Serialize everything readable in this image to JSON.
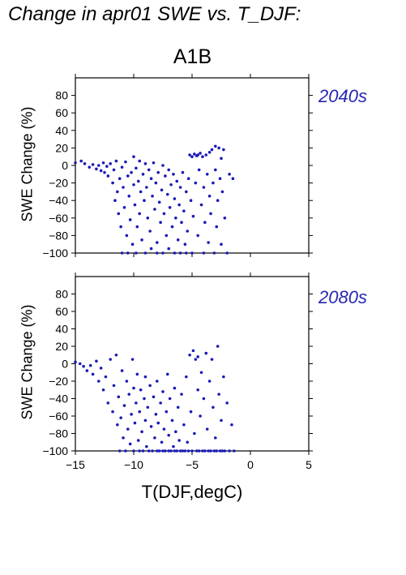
{
  "figure": {
    "title": "Change in apr01 SWE vs. T_DJF:",
    "scenario": "A1B"
  },
  "chart_data": [
    {
      "type": "scatter",
      "panel_label": "2040s",
      "ylabel": "SWE Change (%)",
      "xlabel": "T(DJF,degC)",
      "xlim": [
        -15,
        5
      ],
      "ylim": [
        -100,
        100
      ],
      "xticks": [
        -15,
        -10,
        -5,
        0,
        5
      ],
      "yticks": [
        -100,
        -80,
        -60,
        -40,
        -20,
        0,
        20,
        40,
        60,
        80
      ],
      "point_color": "#1a1ab8",
      "label_color": "#2626b3",
      "points": [
        [
          -15,
          3
        ],
        [
          -14.5,
          5
        ],
        [
          -14.2,
          2
        ],
        [
          -13.8,
          -2
        ],
        [
          -13.5,
          1
        ],
        [
          -13.2,
          -4
        ],
        [
          -13,
          0
        ],
        [
          -12.8,
          -6
        ],
        [
          -12.6,
          3
        ],
        [
          -12.5,
          -8
        ],
        [
          -12.3,
          -1
        ],
        [
          -12.2,
          -12
        ],
        [
          -12,
          2
        ],
        [
          -11.8,
          -20
        ],
        [
          -11.7,
          -5
        ],
        [
          -11.6,
          -40
        ],
        [
          -11.5,
          5
        ],
        [
          -11.4,
          -30
        ],
        [
          -11.3,
          -55
        ],
        [
          -11.2,
          -15
        ],
        [
          -11.1,
          -70
        ],
        [
          -11,
          -2
        ],
        [
          -11,
          -100
        ],
        [
          -10.9,
          -25
        ],
        [
          -10.8,
          -48
        ],
        [
          -10.7,
          4
        ],
        [
          -10.6,
          -80
        ],
        [
          -10.5,
          -12
        ],
        [
          -10.5,
          -100
        ],
        [
          -10.4,
          -35
        ],
        [
          -10.3,
          -62
        ],
        [
          -10.2,
          -8
        ],
        [
          -10.1,
          -90
        ],
        [
          -10,
          10
        ],
        [
          -10,
          -22
        ],
        [
          -9.9,
          -45
        ],
        [
          -9.8,
          -3
        ],
        [
          -9.8,
          -100
        ],
        [
          -9.7,
          -70
        ],
        [
          -9.6,
          -18
        ],
        [
          -9.5,
          5
        ],
        [
          -9.5,
          -55
        ],
        [
          -9.4,
          -30
        ],
        [
          -9.3,
          -85
        ],
        [
          -9.2,
          -10
        ],
        [
          -9.1,
          -40
        ],
        [
          -9,
          2
        ],
        [
          -9,
          -100
        ],
        [
          -8.9,
          -25
        ],
        [
          -8.8,
          -60
        ],
        [
          -8.7,
          -5
        ],
        [
          -8.6,
          -75
        ],
        [
          -8.5,
          -15
        ],
        [
          -8.5,
          -95
        ],
        [
          -8.4,
          -35
        ],
        [
          -8.3,
          3
        ],
        [
          -8.2,
          -50
        ],
        [
          -8.1,
          -20
        ],
        [
          -8,
          -88
        ],
        [
          -8,
          -100
        ],
        [
          -7.9,
          -8
        ],
        [
          -7.8,
          -42
        ],
        [
          -7.7,
          -65
        ],
        [
          -7.6,
          -28
        ],
        [
          -7.5,
          0
        ],
        [
          -7.5,
          -100
        ],
        [
          -7.4,
          -55
        ],
        [
          -7.3,
          -12
        ],
        [
          -7.2,
          -80
        ],
        [
          -7.1,
          -33
        ],
        [
          -7,
          -5
        ],
        [
          -7,
          -95
        ],
        [
          -6.9,
          -48
        ],
        [
          -6.8,
          -22
        ],
        [
          -6.7,
          -70
        ],
        [
          -6.6,
          -10
        ],
        [
          -6.5,
          -100
        ],
        [
          -6.5,
          -38
        ],
        [
          -6.4,
          -60
        ],
        [
          -6.3,
          -18
        ],
        [
          -6.2,
          -85
        ],
        [
          -6.1,
          -45
        ],
        [
          -6,
          -25
        ],
        [
          -6,
          -100
        ],
        [
          -5.9,
          -65
        ],
        [
          -5.8,
          -8
        ],
        [
          -5.7,
          -52
        ],
        [
          -5.6,
          -90
        ],
        [
          -5.5,
          -30
        ],
        [
          -5.5,
          -100
        ],
        [
          -5.4,
          -75
        ],
        [
          -5.3,
          -15
        ],
        [
          -5.2,
          12
        ],
        [
          -5.1,
          -40
        ],
        [
          -5,
          10
        ],
        [
          -5,
          -100
        ],
        [
          -4.9,
          -58
        ],
        [
          -4.8,
          13
        ],
        [
          -4.7,
          -20
        ],
        [
          -4.6,
          11
        ],
        [
          -4.5,
          -80
        ],
        [
          -4.5,
          12
        ],
        [
          -4.4,
          -5
        ],
        [
          -4.3,
          14
        ],
        [
          -4.2,
          -45
        ],
        [
          -4.1,
          10
        ],
        [
          -4,
          -100
        ],
        [
          -4,
          -25
        ],
        [
          -3.9,
          -65
        ],
        [
          -3.8,
          12
        ],
        [
          -3.7,
          -10
        ],
        [
          -3.6,
          -88
        ],
        [
          -3.5,
          15
        ],
        [
          -3.5,
          -35
        ],
        [
          -3.4,
          -55
        ],
        [
          -3.3,
          18
        ],
        [
          -3.2,
          -20
        ],
        [
          -3.1,
          -100
        ],
        [
          -3,
          22
        ],
        [
          -3,
          -5
        ],
        [
          -2.9,
          -70
        ],
        [
          -2.8,
          -40
        ],
        [
          -2.7,
          20
        ],
        [
          -2.6,
          -15
        ],
        [
          -2.5,
          -90
        ],
        [
          -2.5,
          8
        ],
        [
          -2.4,
          -30
        ],
        [
          -2.3,
          18
        ],
        [
          -2.2,
          -60
        ],
        [
          -2,
          -100
        ],
        [
          -1.8,
          -10
        ],
        [
          -1.5,
          -15
        ]
      ]
    },
    {
      "type": "scatter",
      "panel_label": "2080s",
      "ylabel": "SWE Change (%)",
      "xlabel": "T(DJF,degC)",
      "xlim": [
        -15,
        5
      ],
      "ylim": [
        -100,
        100
      ],
      "xticks": [
        -15,
        -10,
        -5,
        0,
        5
      ],
      "yticks": [
        -100,
        -80,
        -60,
        -40,
        -20,
        0,
        20,
        40,
        60,
        80
      ],
      "point_color": "#1a1ab8",
      "label_color": "#2626b3",
      "points": [
        [
          -15,
          2
        ],
        [
          -14.6,
          0
        ],
        [
          -14.3,
          -3
        ],
        [
          -14,
          -8
        ],
        [
          -13.7,
          -2
        ],
        [
          -13.5,
          -12
        ],
        [
          -13.2,
          3
        ],
        [
          -13,
          -20
        ],
        [
          -12.8,
          -5
        ],
        [
          -12.6,
          -30
        ],
        [
          -12.4,
          -15
        ],
        [
          -12.2,
          -45
        ],
        [
          -12,
          5
        ],
        [
          -11.8,
          -55
        ],
        [
          -11.7,
          -25
        ],
        [
          -11.5,
          10
        ],
        [
          -11.4,
          -70
        ],
        [
          -11.3,
          -38
        ],
        [
          -11.2,
          -100
        ],
        [
          -11.1,
          -62
        ],
        [
          -11,
          -8
        ],
        [
          -10.9,
          -85
        ],
        [
          -10.8,
          -48
        ],
        [
          -10.7,
          -100
        ],
        [
          -10.6,
          -20
        ],
        [
          -10.5,
          -75
        ],
        [
          -10.4,
          -35
        ],
        [
          -10.3,
          -92
        ],
        [
          -10.2,
          -58
        ],
        [
          -10.1,
          5
        ],
        [
          -10,
          -100
        ],
        [
          -10,
          -28
        ],
        [
          -9.9,
          -68
        ],
        [
          -9.8,
          -45
        ],
        [
          -9.7,
          -12
        ],
        [
          -9.6,
          -88
        ],
        [
          -9.5,
          -100
        ],
        [
          -9.5,
          -55
        ],
        [
          -9.4,
          -30
        ],
        [
          -9.3,
          -78
        ],
        [
          -9.2,
          -100
        ],
        [
          -9.1,
          -40
        ],
        [
          -9,
          -65
        ],
        [
          -9,
          -15
        ],
        [
          -8.9,
          -95
        ],
        [
          -8.8,
          -50
        ],
        [
          -8.7,
          -100
        ],
        [
          -8.6,
          -25
        ],
        [
          -8.5,
          -72
        ],
        [
          -8.4,
          -100
        ],
        [
          -8.3,
          -38
        ],
        [
          -8.2,
          -85
        ],
        [
          -8.1,
          -58
        ],
        [
          -8,
          -100
        ],
        [
          -8,
          -20
        ],
        [
          -7.9,
          -68
        ],
        [
          -7.8,
          -100
        ],
        [
          -7.7,
          -45
        ],
        [
          -7.6,
          -90
        ],
        [
          -7.5,
          -100
        ],
        [
          -7.5,
          -32
        ],
        [
          -7.4,
          -75
        ],
        [
          -7.3,
          -100
        ],
        [
          -7.2,
          -55
        ],
        [
          -7.1,
          -12
        ],
        [
          -7,
          -100
        ],
        [
          -7,
          -82
        ],
        [
          -6.9,
          -40
        ],
        [
          -6.8,
          -100
        ],
        [
          -6.7,
          -65
        ],
        [
          -6.6,
          -95
        ],
        [
          -6.5,
          -100
        ],
        [
          -6.5,
          -28
        ],
        [
          -6.4,
          -78
        ],
        [
          -6.3,
          -100
        ],
        [
          -6.2,
          -50
        ],
        [
          -6.1,
          -88
        ],
        [
          -6,
          -100
        ],
        [
          -5.9,
          -35
        ],
        [
          -5.8,
          -100
        ],
        [
          -5.7,
          -70
        ],
        [
          -5.6,
          -100
        ],
        [
          -5.5,
          -15
        ],
        [
          -5.4,
          -90
        ],
        [
          -5.3,
          -100
        ],
        [
          -5.2,
          10
        ],
        [
          -5.1,
          -55
        ],
        [
          -5,
          -100
        ],
        [
          -4.9,
          15
        ],
        [
          -4.8,
          -80
        ],
        [
          -4.7,
          5
        ],
        [
          -4.6,
          -100
        ],
        [
          -4.5,
          -30
        ],
        [
          -4.5,
          8
        ],
        [
          -4.4,
          -100
        ],
        [
          -4.3,
          -60
        ],
        [
          -4.2,
          -10
        ],
        [
          -4.1,
          -100
        ],
        [
          -4,
          -40
        ],
        [
          -3.9,
          -100
        ],
        [
          -3.8,
          12
        ],
        [
          -3.7,
          -75
        ],
        [
          -3.6,
          -100
        ],
        [
          -3.5,
          -20
        ],
        [
          -3.4,
          -100
        ],
        [
          -3.3,
          5
        ],
        [
          -3.2,
          -50
        ],
        [
          -3.1,
          -100
        ],
        [
          -3,
          -85
        ],
        [
          -2.9,
          -100
        ],
        [
          -2.8,
          20
        ],
        [
          -2.7,
          -35
        ],
        [
          -2.6,
          -100
        ],
        [
          -2.5,
          -65
        ],
        [
          -2.4,
          -100
        ],
        [
          -2.3,
          -15
        ],
        [
          -2.2,
          -100
        ],
        [
          -2,
          -45
        ],
        [
          -1.8,
          -100
        ],
        [
          -1.6,
          -70
        ],
        [
          -1.4,
          -100
        ]
      ]
    }
  ]
}
